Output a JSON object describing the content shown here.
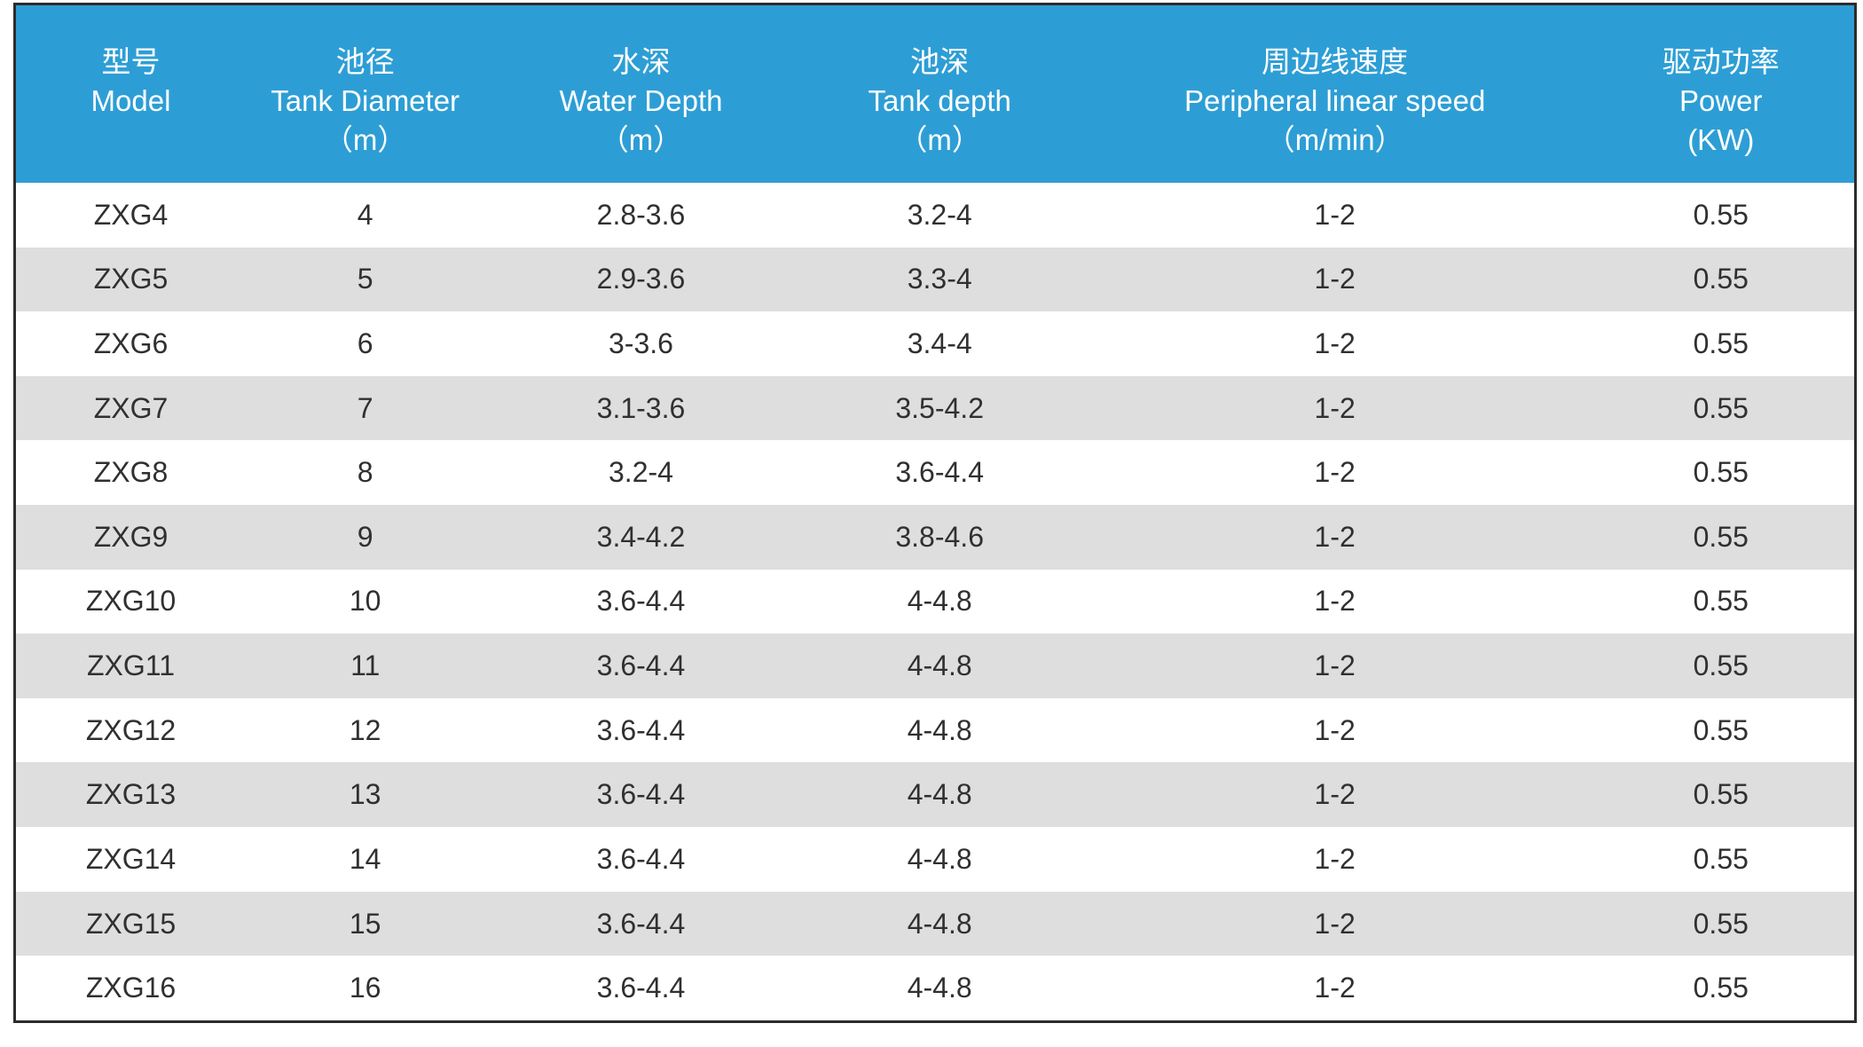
{
  "chart_data": {
    "type": "table",
    "columns": [
      {
        "zh": "型号",
        "en": "Model",
        "unit": ""
      },
      {
        "zh": "池径",
        "en": "Tank Diameter",
        "unit": "（m）"
      },
      {
        "zh": "水深",
        "en": "Water Depth",
        "unit": "（m）"
      },
      {
        "zh": "池深",
        "en": "Tank depth",
        "unit": "（m）"
      },
      {
        "zh": "周边线速度",
        "en": "Peripheral linear speed",
        "unit": "（m/min）"
      },
      {
        "zh": "驱动功率",
        "en": "Power",
        "unit": "(KW)"
      }
    ],
    "rows": [
      [
        "ZXG4",
        "4",
        "2.8-3.6",
        "3.2-4",
        "1-2",
        "0.55"
      ],
      [
        "ZXG5",
        "5",
        "2.9-3.6",
        "3.3-4",
        "1-2",
        "0.55"
      ],
      [
        "ZXG6",
        "6",
        "3-3.6",
        "3.4-4",
        "1-2",
        "0.55"
      ],
      [
        "ZXG7",
        "7",
        "3.1-3.6",
        "3.5-4.2",
        "1-2",
        "0.55"
      ],
      [
        "ZXG8",
        "8",
        "3.2-4",
        "3.6-4.4",
        "1-2",
        "0.55"
      ],
      [
        "ZXG9",
        "9",
        "3.4-4.2",
        "3.8-4.6",
        "1-2",
        "0.55"
      ],
      [
        "ZXG10",
        "10",
        "3.6-4.4",
        "4-4.8",
        "1-2",
        "0.55"
      ],
      [
        "ZXG11",
        "11",
        "3.6-4.4",
        "4-4.8",
        "1-2",
        "0.55"
      ],
      [
        "ZXG12",
        "12",
        "3.6-4.4",
        "4-4.8",
        "1-2",
        "0.55"
      ],
      [
        "ZXG13",
        "13",
        "3.6-4.4",
        "4-4.8",
        "1-2",
        "0.55"
      ],
      [
        "ZXG14",
        "14",
        "3.6-4.4",
        "4-4.8",
        "1-2",
        "0.55"
      ],
      [
        "ZXG15",
        "15",
        "3.6-4.4",
        "4-4.8",
        "1-2",
        "0.55"
      ],
      [
        "ZXG16",
        "16",
        "3.6-4.4",
        "4-4.8",
        "1-2",
        "0.55"
      ]
    ],
    "colors": {
      "header_bg": "#2d9ed5",
      "header_text": "#ffffff",
      "row_bg": "#ffffff",
      "row_alt_bg": "#dedede",
      "frame_border": "#2c2c2c",
      "body_text": "#303030"
    }
  }
}
